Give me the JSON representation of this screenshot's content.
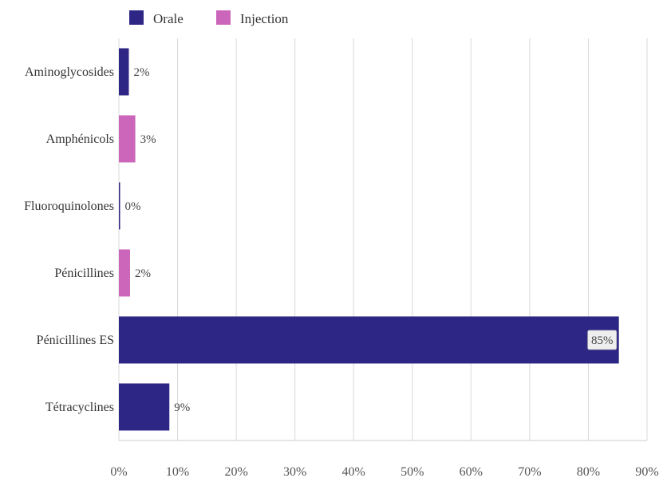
{
  "chart_data": {
    "type": "bar",
    "orientation": "horizontal",
    "categories": [
      "Aminoglycosides",
      "Amphénicols",
      "Fluoroquinolones",
      "Pénicillines",
      "Pénicillines ES",
      "Tétracyclines"
    ],
    "values": [
      1.7,
      2.8,
      0.2,
      1.9,
      85.2,
      8.6
    ],
    "value_labels": [
      "2%",
      "3%",
      "0%",
      "2%",
      "85%",
      "9%"
    ],
    "bar_series": [
      "Orale",
      "Injection",
      "Orale",
      "Injection",
      "Orale",
      "Orale"
    ],
    "series": [
      {
        "name": "Orale",
        "color": "#2e2685"
      },
      {
        "name": "Injection",
        "color": "#cc66bb"
      }
    ],
    "xlim": [
      0,
      90
    ],
    "xticks": [
      "0%",
      "10%",
      "20%",
      "30%",
      "40%",
      "50%",
      "60%",
      "70%",
      "80%",
      "90%"
    ],
    "tick_values": [
      0,
      10,
      20,
      30,
      40,
      50,
      60,
      70,
      80,
      90
    ],
    "grid": "vertical",
    "legend_position": "top-left",
    "colors": {
      "gridline": "#d9d9d9",
      "axis": "#cccccc",
      "label_box_bg": "#eeeeee"
    }
  }
}
